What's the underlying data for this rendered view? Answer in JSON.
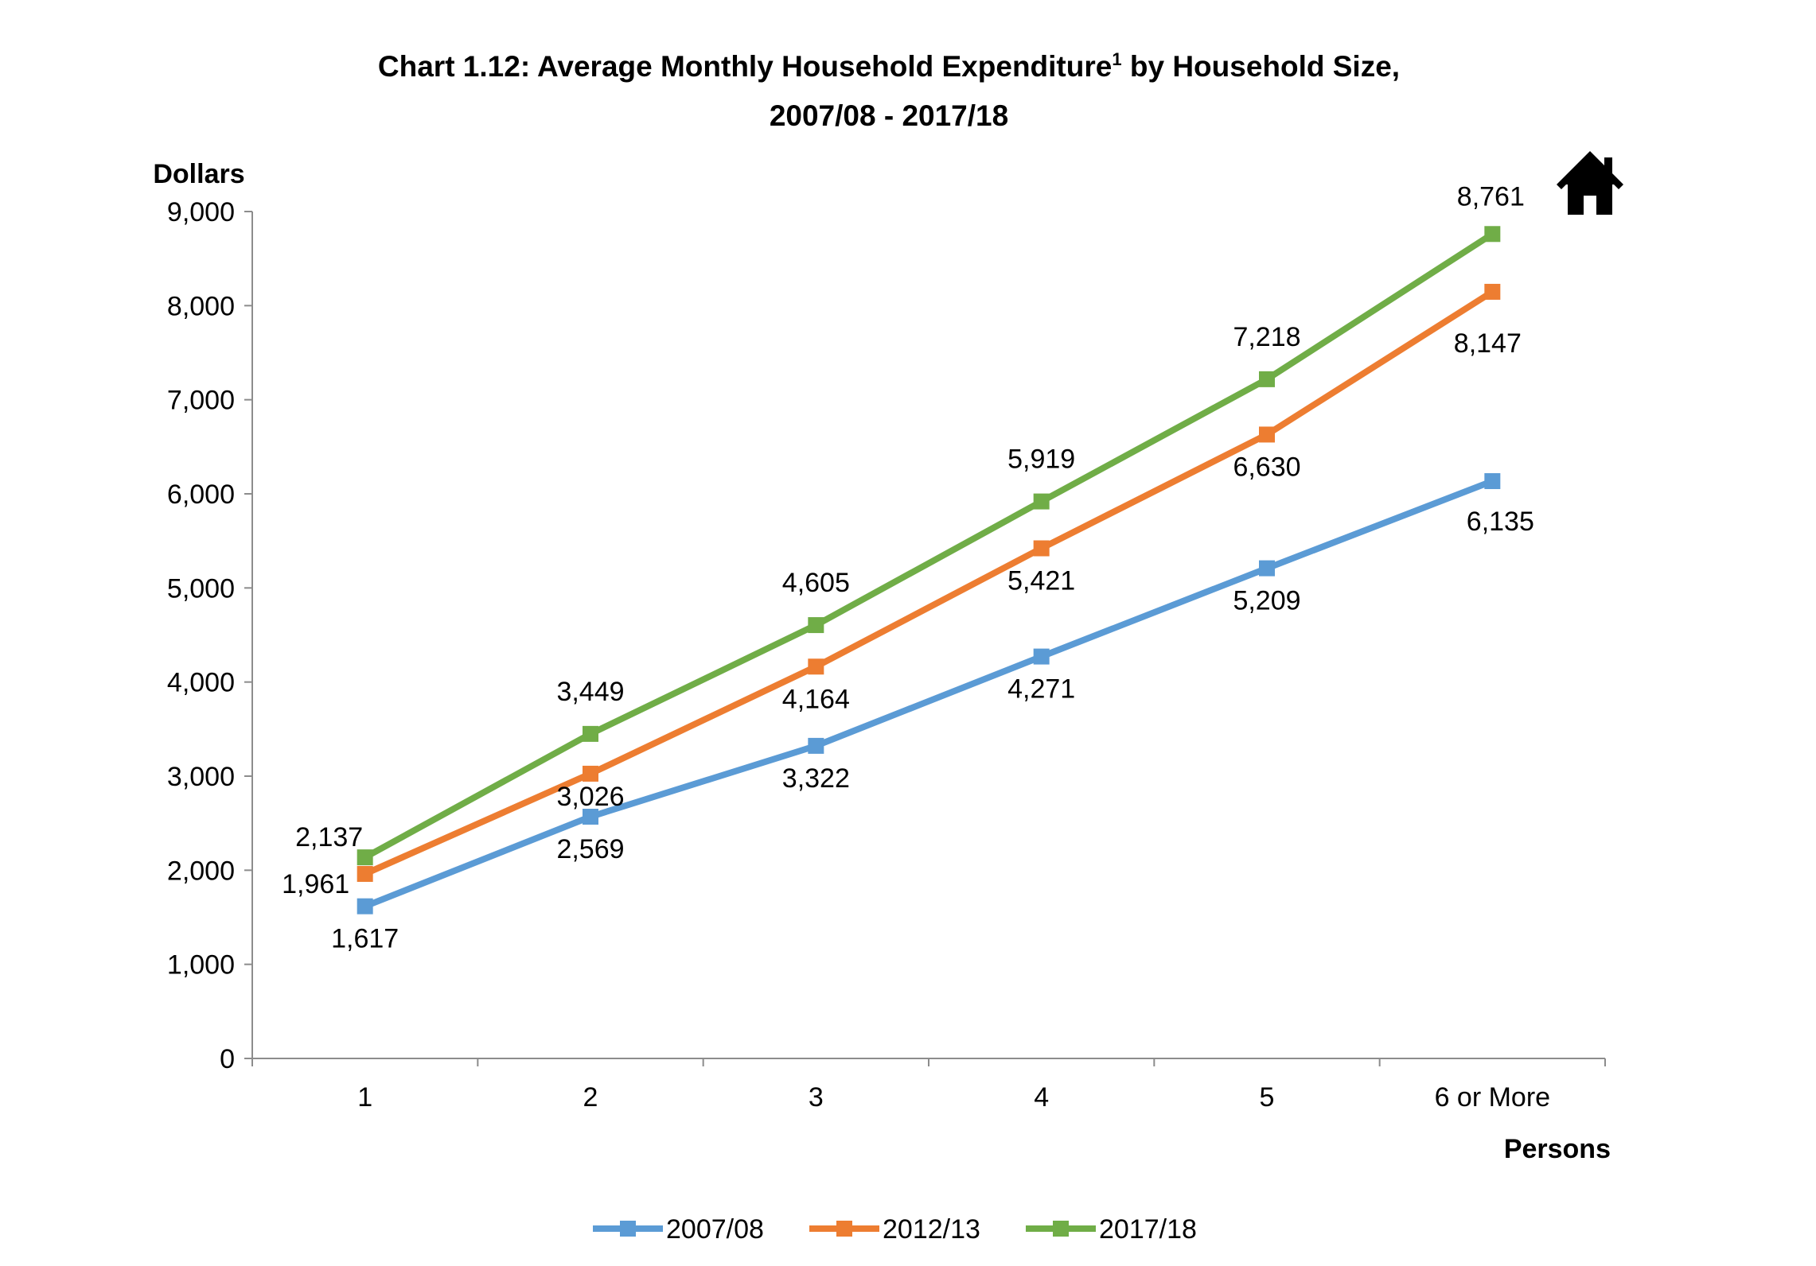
{
  "chart_data": {
    "type": "line",
    "title_main": "Chart 1.12: Average Monthly Household Expenditure",
    "title_superscript": "1",
    "title_suffix": " by Household Size,",
    "title_line2": "2007/08 - 2017/18",
    "ylabel": "Dollars",
    "xlabel": "Persons",
    "ylim": [
      0,
      9000
    ],
    "yticks": [
      0,
      1000,
      2000,
      3000,
      4000,
      5000,
      6000,
      7000,
      8000,
      9000
    ],
    "ytick_labels": [
      "0",
      "1,000",
      "2,000",
      "3,000",
      "4,000",
      "5,000",
      "6,000",
      "7,000",
      "8,000",
      "9,000"
    ],
    "categories": [
      "1",
      "2",
      "3",
      "4",
      "5",
      "6 or More"
    ],
    "grid": false,
    "legend_position": "bottom",
    "series": [
      {
        "name": "2007/08",
        "color": "#5b9bd5",
        "values": [
          1617,
          2569,
          3322,
          4271,
          5209,
          6135
        ],
        "labels": [
          "1,617",
          "2,569",
          "3,322",
          "4,271",
          "5,209",
          "6,135"
        ]
      },
      {
        "name": "2012/13",
        "color": "#ed7d31",
        "values": [
          1961,
          3026,
          4164,
          5421,
          6630,
          8147
        ],
        "labels": [
          "1,961",
          "3,026",
          "4,164",
          "5,421",
          "6,630",
          "8,147"
        ]
      },
      {
        "name": "2017/18",
        "color": "#70ad47",
        "values": [
          2137,
          3449,
          4605,
          5919,
          7218,
          8761
        ],
        "labels": [
          "2,137",
          "3,449",
          "4,605",
          "5,919",
          "7,218",
          "8,761"
        ]
      }
    ]
  },
  "home_button": {
    "icon": "home-icon"
  }
}
